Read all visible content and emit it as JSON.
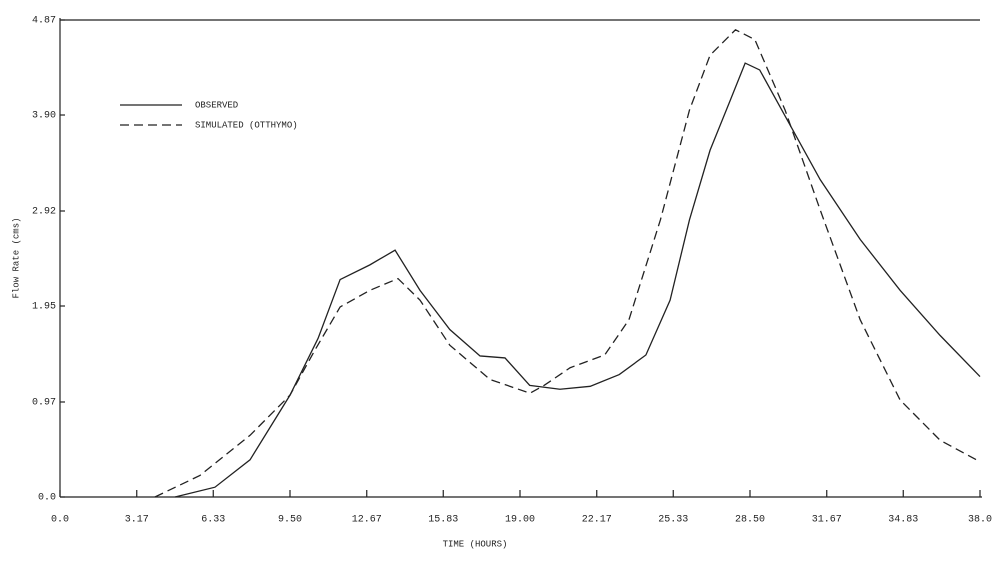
{
  "chart_data": {
    "type": "line",
    "x_label": "TIME (HOURS)",
    "y_label": "Flow Rate (cms)",
    "xlim": [
      0,
      38
    ],
    "ylim": [
      0,
      4.87
    ],
    "xticks": [
      {
        "value": 0,
        "label": "0.0"
      },
      3.17,
      6.33,
      {
        "value": 9.5,
        "label": "9.50"
      },
      12.67,
      15.83,
      {
        "value": 19,
        "label": "19.00"
      },
      22.17,
      25.33,
      {
        "value": 28.5,
        "label": "28.50"
      },
      31.67,
      34.83,
      {
        "value": 38,
        "label": "38.0"
      }
    ],
    "yticks": [
      {
        "value": 0,
        "label": "0.0"
      },
      0.97,
      1.95,
      2.92,
      {
        "value": 3.9,
        "label": "3.90"
      },
      4.87
    ],
    "legend": "upper left",
    "series": [
      {
        "name": "OBSERVED",
        "color": "#222222",
        "dash": false,
        "x": [
          4.75,
          6.4,
          7.85,
          9.5,
          10.66,
          11.57,
          12.8,
          13.84,
          14.87,
          16.1,
          17.35,
          18.38,
          19.4,
          20.65,
          21.9,
          23.1,
          24.2,
          25.2,
          26.0,
          26.85,
          27.7,
          28.3,
          28.9,
          30.15,
          31.4,
          33.05,
          34.7,
          36.35,
          38
        ],
        "values": [
          0,
          0.1,
          0.38,
          1.04,
          1.62,
          2.22,
          2.37,
          2.52,
          2.11,
          1.71,
          1.44,
          1.42,
          1.14,
          1.1,
          1.13,
          1.25,
          1.45,
          2.01,
          2.83,
          3.54,
          4.06,
          4.43,
          4.36,
          3.8,
          3.24,
          2.63,
          2.11,
          1.65,
          1.23
        ]
      },
      {
        "name": "SIMULATED (OTTHYMO)",
        "color": "#222222",
        "dash": true,
        "x": [
          3.92,
          5.78,
          7.85,
          9.5,
          10.53,
          11.57,
          12.8,
          13.96,
          14.87,
          16.1,
          17.76,
          19.41,
          20.0,
          21.07,
          22.5,
          23.5,
          24.8,
          26.0,
          26.85,
          27.9,
          28.7,
          29.95,
          31.4,
          33.05,
          34.7,
          36.35,
          38
        ],
        "values": [
          0,
          0.22,
          0.63,
          1.04,
          1.5,
          1.94,
          2.11,
          2.23,
          2.01,
          1.55,
          1.2,
          1.06,
          1.14,
          1.32,
          1.45,
          1.81,
          2.83,
          3.95,
          4.51,
          4.77,
          4.67,
          3.95,
          2.93,
          1.81,
          0.99,
          0.58,
          0.36
        ]
      }
    ]
  }
}
